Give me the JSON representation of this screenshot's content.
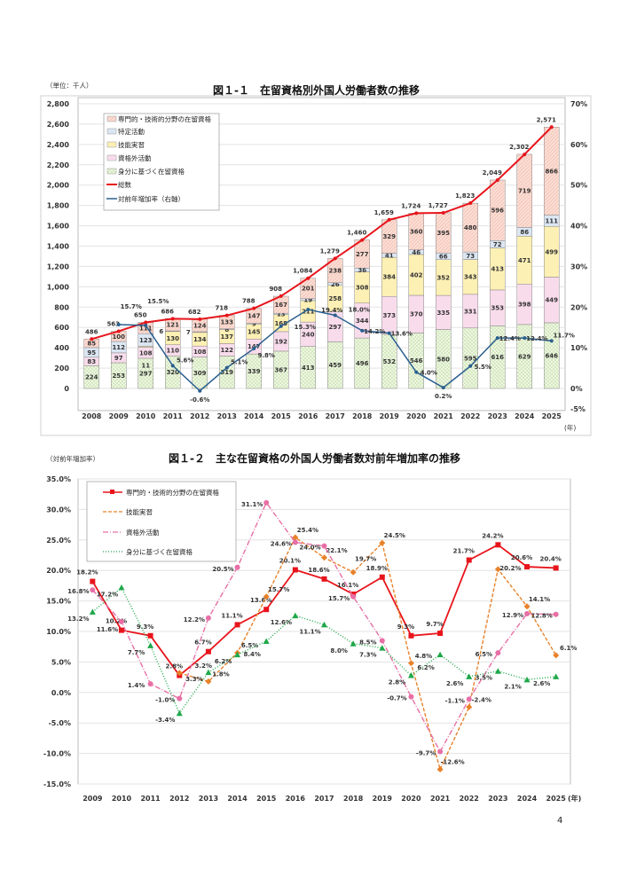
{
  "page_number": "4",
  "chart_data": [
    {
      "type": "bar",
      "stacked": true,
      "title": "図１-１　在留資格別外国人労働者数の推移",
      "unit_label": "（単位：千人）",
      "x_unit": "(年)",
      "categories": [
        "2008",
        "2009",
        "2010",
        "2011",
        "2012",
        "2013",
        "2014",
        "2015",
        "2016",
        "2017",
        "2018",
        "2019",
        "2020",
        "2021",
        "2022",
        "2023",
        "2024",
        "2025"
      ],
      "ylim": [
        0,
        2800
      ],
      "y_ticks": [
        "0",
        "200",
        "400",
        "600",
        "800",
        "1,000",
        "1,200",
        "1,400",
        "1,600",
        "1,800",
        "2,000",
        "2,200",
        "2,400",
        "2,600",
        "2,800"
      ],
      "y2lim": [
        -5,
        70
      ],
      "y2_ticks": [
        "-5%",
        "0%",
        "10%",
        "20%",
        "30%",
        "40%",
        "50%",
        "60%",
        "70%"
      ],
      "grid": true,
      "legend_position": "top-left",
      "series": [
        {
          "name": "身分に基づく在留資格",
          "color": "#e4f1d3",
          "values": [
            224,
            253,
            297,
            320,
            309,
            319,
            339,
            367,
            413,
            459,
            496,
            532,
            546,
            580,
            595,
            616,
            629,
            646
          ]
        },
        {
          "name": "資格外活動",
          "color": "#f7d6e8",
          "values": [
            83,
            97,
            108,
            110,
            108,
            122,
            147,
            192,
            240,
            297,
            344,
            373,
            370,
            335,
            331,
            353,
            398,
            449
          ]
        },
        {
          "name": "技能実習",
          "color": "#fdf0b4",
          "values": [
            null,
            null,
            11,
            130,
            134,
            137,
            145,
            168,
            211,
            258,
            308,
            384,
            402,
            352,
            343,
            413,
            471,
            499
          ]
        },
        {
          "name": "特定活動",
          "color": "#dbe6f3",
          "values": [
            95,
            112,
            123,
            6,
            7,
            8,
            9,
            13,
            19,
            26,
            36,
            41,
            46,
            66,
            73,
            72,
            86,
            111
          ]
        },
        {
          "name": "専門的・技術的分野の在留資格",
          "color": "#f8cfc2",
          "values": [
            85,
            100,
            111,
            121,
            124,
            133,
            147,
            167,
            201,
            238,
            277,
            329,
            360,
            395,
            480,
            596,
            719,
            866
          ]
        }
      ],
      "total": {
        "name": "総数",
        "color": "#e8141b",
        "values": [
          "486",
          "563",
          "650",
          "686",
          "682",
          "718",
          "788",
          "908",
          "1,084",
          "1,279",
          "1,460",
          "1,659",
          "1,724",
          "1,727",
          "1,823",
          "2,049",
          "2,302",
          "2,571"
        ]
      },
      "growth": {
        "name": "対前年増加率（右軸）",
        "color": "#2a5f8f",
        "values": [
          null,
          15.7,
          15.5,
          5.6,
          -0.6,
          5.1,
          9.8,
          15.3,
          19.4,
          18.0,
          14.2,
          13.6,
          4.0,
          0.2,
          5.5,
          12.4,
          12.4,
          11.7
        ]
      }
    },
    {
      "type": "line",
      "title": "図１-２　主な在留資格の外国人労働者数対前年増加率の推移",
      "ylabel": "（対前年増加率）",
      "x_unit": "(年)",
      "categories": [
        "2009",
        "2010",
        "2011",
        "2012",
        "2013",
        "2014",
        "2015",
        "2016",
        "2017",
        "2018",
        "2019",
        "2020",
        "2021",
        "2022",
        "2023",
        "2024",
        "2025"
      ],
      "ylim": [
        -15,
        35
      ],
      "y_ticks": [
        "-15.0%",
        "-10.0%",
        "-5.0%",
        "0.0%",
        "5.0%",
        "10.0%",
        "15.0%",
        "20.0%",
        "25.0%",
        "30.0%",
        "35.0%"
      ],
      "grid": true,
      "legend_position": "top-left",
      "series": [
        {
          "name": "専門的・技術的分野の在留資格",
          "color": "#e8141b",
          "values": [
            18.2,
            10.2,
            9.3,
            2.8,
            6.7,
            11.1,
            13.6,
            20.1,
            18.6,
            16.1,
            18.9,
            9.3,
            9.7,
            21.7,
            24.2,
            20.6,
            20.4
          ]
        },
        {
          "name": "技能実習",
          "color": "#e8822a",
          "values": [
            null,
            null,
            null,
            3.2,
            1.8,
            6.5,
            15.7,
            25.4,
            22.1,
            19.7,
            24.5,
            4.8,
            -12.6,
            -2.4,
            20.2,
            14.1,
            6.1
          ]
        },
        {
          "name": "資格外活動",
          "color": "#e86fa6",
          "values": [
            16.8,
            11.6,
            1.4,
            -1.0,
            12.2,
            20.5,
            31.1,
            24.6,
            24.0,
            15.7,
            8.5,
            -0.7,
            -9.7,
            -1.1,
            6.5,
            12.9,
            12.8
          ]
        },
        {
          "name": "身分に基づく在留資格",
          "color": "#1fa84a",
          "values": [
            13.2,
            17.2,
            7.7,
            -3.4,
            3.3,
            6.2,
            8.4,
            12.6,
            11.1,
            8.0,
            7.3,
            2.8,
            6.2,
            2.6,
            3.5,
            2.1,
            2.6
          ]
        }
      ]
    }
  ]
}
